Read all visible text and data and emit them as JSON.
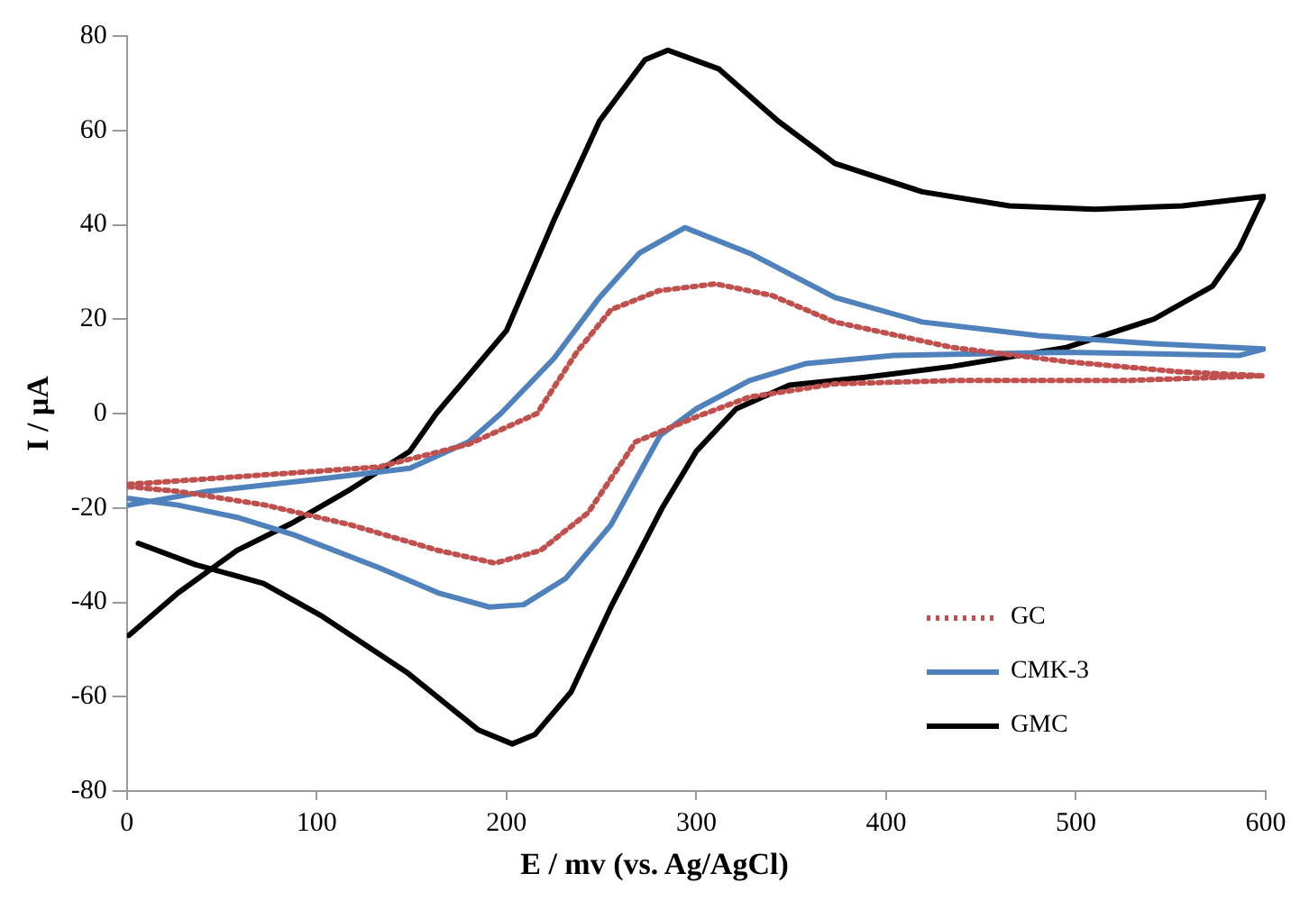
{
  "chart_data": {
    "type": "line",
    "xlabel": "E / mv (vs. Ag/AgCl)",
    "ylabel": "I / μA",
    "xlim": [
      0,
      600
    ],
    "xticks": [
      0,
      100,
      200,
      300,
      400,
      500,
      600
    ],
    "ylim": [
      -80,
      80
    ],
    "yticks": [
      -80,
      -60,
      -40,
      -20,
      0,
      20,
      40,
      60,
      80
    ],
    "grid": false,
    "legend": "bottom right",
    "marker": "none",
    "series": [
      {
        "name": "GC",
        "color": "#c0504d",
        "line_style": "dotted",
        "x": [
          1,
          72,
          133,
          180,
          216,
          237,
          255,
          280,
          310,
          340,
          373,
          435,
          495,
          556,
          599,
          526,
          435,
          373,
          328,
          300,
          268,
          243,
          218,
          194,
          164,
          118,
          73,
          27,
          1
        ],
        "values": [
          -15,
          -13,
          -11.3,
          -6.5,
          0,
          13,
          22,
          26,
          27.5,
          25,
          19.4,
          14,
          11,
          8.8,
          8,
          7,
          7,
          6.3,
          3.5,
          -0.7,
          -6,
          -21,
          -29,
          -31.7,
          -29,
          -23.6,
          -19.4,
          -16.5,
          -15.5
        ]
      },
      {
        "name": "CMK-3",
        "color": "#4f81bd",
        "line_style": "solid",
        "x": [
          1,
          42,
          103,
          149,
          180,
          197,
          225,
          249,
          270,
          294,
          328,
          373,
          419,
          480,
          541,
          599,
          586,
          495,
          404,
          358,
          328,
          300,
          281,
          255,
          231,
          209,
          191,
          164,
          133,
          88,
          58,
          27,
          1
        ],
        "values": [
          -19.4,
          -16.5,
          -13.8,
          -11.6,
          -6,
          0,
          11.7,
          24.6,
          34,
          39.4,
          34,
          24.6,
          19.4,
          16.5,
          14.8,
          13.7,
          12.3,
          13,
          12.3,
          10.6,
          7,
          1,
          -4.6,
          -23.6,
          -35,
          -40.5,
          -41,
          -38,
          -32.7,
          -25.7,
          -22,
          -19.4,
          -18
        ]
      },
      {
        "name": "GMC",
        "color": "#000000",
        "line_style": "solid",
        "x": [
          1,
          27,
          58,
          88,
          118,
          149,
          163,
          200,
          225,
          249,
          273,
          285,
          312,
          343,
          373,
          419,
          465,
          510,
          556,
          599,
          586,
          572,
          541,
          495,
          435,
          389,
          349,
          321,
          300,
          282,
          255,
          234,
          215,
          203,
          185,
          148,
          103,
          72,
          36,
          6
        ],
        "values": [
          -47,
          -38,
          -29,
          -23,
          -16,
          -8,
          0,
          17.6,
          41,
          62,
          75,
          77,
          73,
          62,
          53,
          47,
          44,
          43.3,
          44,
          46,
          35,
          27,
          20,
          14,
          10,
          7.7,
          6,
          1,
          -8,
          -20,
          -41,
          -59,
          -68,
          -70,
          -67,
          -55,
          -43,
          -36,
          -32,
          -27.5
        ]
      }
    ]
  }
}
